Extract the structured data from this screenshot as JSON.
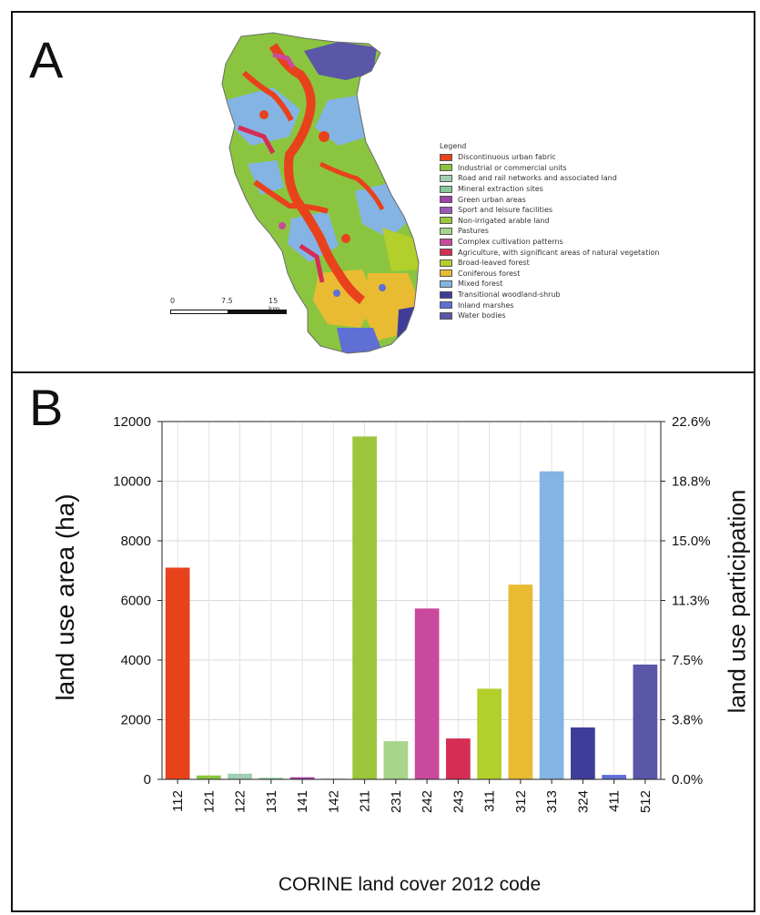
{
  "panelA": {
    "letter": "A",
    "legend_title": "Legend",
    "legend": [
      {
        "label": "Discontinuous urban fabric",
        "color": "#e8421c"
      },
      {
        "label": "Industrial or commercial units",
        "color": "#8bc53f"
      },
      {
        "label": "Road and rail networks and associated land",
        "color": "#9fcfb0"
      },
      {
        "label": "Mineral extraction sites",
        "color": "#86c99a"
      },
      {
        "label": "Green urban areas",
        "color": "#a042a8"
      },
      {
        "label": "Sport and leisure facilities",
        "color": "#9b59b6"
      },
      {
        "label": "Non-irrigated arable land",
        "color": "#9cc63b"
      },
      {
        "label": "Pastures",
        "color": "#a7d68a"
      },
      {
        "label": "Complex cultivation patterns",
        "color": "#c94a9c"
      },
      {
        "label": "Agriculture, with significant areas of natural vegetation",
        "color": "#d62d55"
      },
      {
        "label": "Broad-leaved forest",
        "color": "#b3cf2c"
      },
      {
        "label": "Coniferous forest",
        "color": "#e9bb33"
      },
      {
        "label": "Mixed forest",
        "color": "#84b4e4"
      },
      {
        "label": "Transitional woodland-shrub",
        "color": "#3f3d9a"
      },
      {
        "label": "Inland marshes",
        "color": "#5f6fd4"
      },
      {
        "label": "Water bodies",
        "color": "#5a56a8"
      }
    ],
    "scale": {
      "labels": [
        "0",
        "7.5",
        "15 km"
      ]
    }
  },
  "panelB": {
    "letter": "B",
    "ylabel_left": "land use area (ha)",
    "ylabel_right": "land use participation",
    "xlabel": "CORINE land cover 2012 code"
  },
  "chart_data": {
    "type": "bar",
    "title": "",
    "xlabel": "CORINE land cover 2012 code",
    "ylabel": "land use area (ha)",
    "ylabel_right": "land use participation",
    "ylim": [
      0,
      12000
    ],
    "yticks": [
      "0",
      "2000",
      "4000",
      "6000",
      "8000",
      "10000",
      "12000"
    ],
    "yticks_right": [
      "0.0%",
      "3.8%",
      "7.5%",
      "11.3%",
      "15.0%",
      "18.8%",
      "22.6%"
    ],
    "grid": true,
    "categories": [
      "112",
      "121",
      "122",
      "131",
      "141",
      "142",
      "211",
      "231",
      "242",
      "243",
      "311",
      "312",
      "313",
      "324",
      "411",
      "512"
    ],
    "values": [
      7100,
      130,
      190,
      50,
      70,
      20,
      11500,
      1280,
      5730,
      1370,
      3040,
      6530,
      10330,
      1740,
      150,
      3850
    ],
    "colors": [
      "#e8421c",
      "#8bc53f",
      "#9fcfb0",
      "#86c99a",
      "#a042a8",
      "#9b59b6",
      "#9cc63b",
      "#a7d68a",
      "#c94a9c",
      "#d62d55",
      "#b3cf2c",
      "#e9bb33",
      "#84b4e4",
      "#3f3d9a",
      "#5f6fd4",
      "#5a56a8"
    ]
  }
}
